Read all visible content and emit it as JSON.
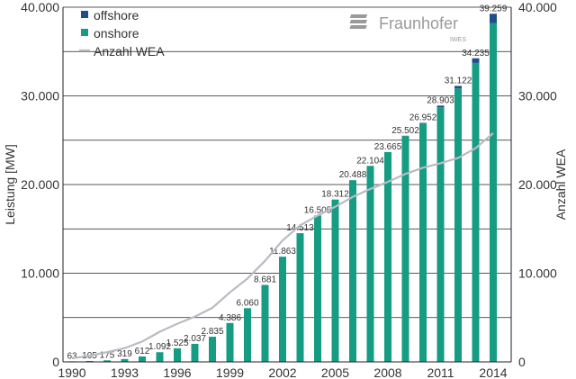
{
  "chart_data": {
    "type": "bar",
    "x": [
      1990,
      1991,
      1992,
      1993,
      1994,
      1995,
      1996,
      1997,
      1998,
      1999,
      2000,
      2001,
      2002,
      2003,
      2004,
      2005,
      2006,
      2007,
      2008,
      2009,
      2010,
      2011,
      2012,
      2013,
      2014
    ],
    "series": [
      {
        "name": "offshore",
        "color": "#1f4e8c",
        "values": [
          0,
          0,
          0,
          0,
          0,
          0,
          0,
          0,
          0,
          0,
          0,
          0,
          0,
          0,
          0,
          0,
          0,
          0,
          0,
          35,
          80,
          188,
          280,
          520,
          1040
        ]
      },
      {
        "name": "onshore",
        "color": "#159c82",
        "values": [
          63,
          105,
          175,
          319,
          612,
          1092,
          1525,
          2037,
          2835,
          4386,
          6060,
          8681,
          11863,
          14513,
          16505,
          18312,
          20488,
          22104,
          23665,
          25467,
          26872,
          28715,
          30842,
          33715,
          38219
        ]
      },
      {
        "name": "Anzahl WEA",
        "type": "line",
        "axis": "right",
        "color": "#b8bcc2",
        "values": [
          400,
          700,
          1100,
          1550,
          2300,
          3400,
          4300,
          5100,
          6100,
          7850,
          9400,
          11400,
          13700,
          15400,
          16500,
          17500,
          18600,
          19500,
          20300,
          21200,
          21900,
          22400,
          23000,
          24100,
          25800
        ]
      }
    ],
    "data_labels": [
      "63",
      "105",
      "175",
      "319",
      "612",
      "1.092",
      "1.525",
      "2.037",
      "2.835",
      "4.386",
      "6.060",
      "8.681",
      "11.863",
      "14.513",
      "16.505",
      "18.312",
      "20.488",
      "22.104",
      "23.665",
      "25.502",
      "26.952",
      "28.903",
      "31.122",
      "34.235",
      "39.259"
    ],
    "x_ticks": [
      "1990",
      "1993",
      "1996",
      "1999",
      "2002",
      "2005",
      "2008",
      "2011",
      "2014"
    ],
    "y_ticks": [
      "0",
      "10.000",
      "20.000",
      "30.000",
      "40.000"
    ],
    "y_tick_values": [
      0,
      10000,
      20000,
      30000,
      40000
    ],
    "ylabel": "Leistung [MW]",
    "y2label": "Anzahl WEA",
    "ylim": [
      0,
      40000
    ],
    "y2lim": [
      0,
      40000
    ],
    "grid": true,
    "legend": "top-left"
  },
  "logo": {
    "name": "Fraunhofer",
    "sub": "IWES"
  }
}
